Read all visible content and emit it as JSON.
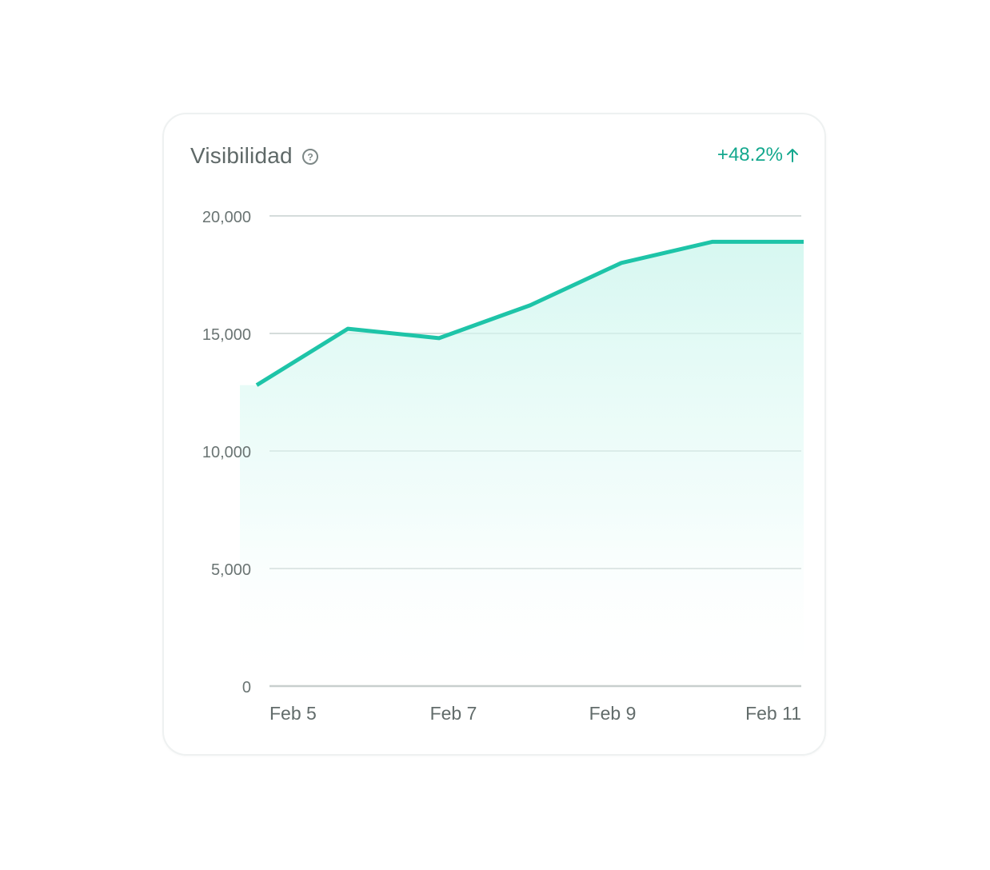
{
  "card": {
    "title": "Visibilidad",
    "help_icon": "question-circle-icon",
    "change_value": "+48.2%",
    "change_icon": "arrow-up-icon"
  },
  "colors": {
    "accent": "#1ec4a8",
    "change_text": "#14a88e",
    "grid": "#d5dcdb",
    "axis": "#c8cfce"
  },
  "chart_data": {
    "type": "area",
    "title": "Visibilidad",
    "xlabel": "",
    "ylabel": "",
    "x": [
      "Feb 5",
      "Feb 6",
      "Feb 7",
      "Feb 8",
      "Feb 9",
      "Feb 10",
      "Feb 11"
    ],
    "x_tick_labels": [
      "Feb 5",
      "Feb 7",
      "Feb 9",
      "Feb 11"
    ],
    "y_ticks": [
      "20,000",
      "15,000",
      "10,000",
      "5,000",
      "0"
    ],
    "ylim": [
      0,
      20000
    ],
    "grid": true,
    "series": [
      {
        "values": [
          12800,
          15200,
          14800,
          16200,
          18000,
          18900,
          18900
        ]
      }
    ]
  }
}
